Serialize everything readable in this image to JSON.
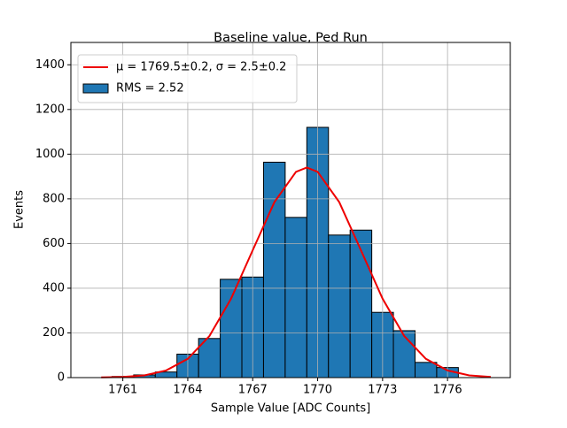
{
  "chart_data": {
    "type": "histogram",
    "title": "Baseline value, Ped Run",
    "xlabel": "Sample Value [ADC Counts]",
    "ylabel": "Events",
    "bins": [
      1760.5,
      1761.5,
      1762.5,
      1763.5,
      1764.5,
      1765.5,
      1766.5,
      1767.5,
      1768.5,
      1769.5,
      1770.5,
      1771.5,
      1772.5,
      1773.5,
      1774.5,
      1775.5,
      1776.5
    ],
    "series": [
      {
        "name": "μ = 1769.5±0.2, σ = 2.5±0.2",
        "type": "line",
        "color": "#ee0000",
        "x": [
          1760,
          1761,
          1762,
          1763,
          1764,
          1765,
          1766,
          1767,
          1768,
          1769,
          1769.5,
          1770,
          1771,
          1772,
          1773,
          1774,
          1775,
          1776,
          1777,
          1778
        ],
        "values": [
          1,
          3,
          10,
          32,
          84,
          186,
          353,
          570,
          785,
          921,
          940,
          921,
          785,
          570,
          353,
          186,
          84,
          32,
          10,
          3
        ]
      },
      {
        "name": "RMS = 2.52",
        "type": "histogram",
        "color": "#1f77b4",
        "edgecolor": "#000000",
        "values": [
          5,
          12,
          25,
          105,
          175,
          440,
          450,
          964,
          717,
          1120,
          638,
          660,
          292,
          210,
          68,
          45
        ]
      }
    ],
    "xlim": [
      1758.6,
      1778.9
    ],
    "ylim": [
      0,
      1500
    ],
    "xticks": [
      1761,
      1764,
      1767,
      1770,
      1773,
      1776
    ],
    "yticks": [
      0,
      200,
      400,
      600,
      800,
      1000,
      1200,
      1400
    ],
    "grid": true,
    "legend": "upper left"
  }
}
